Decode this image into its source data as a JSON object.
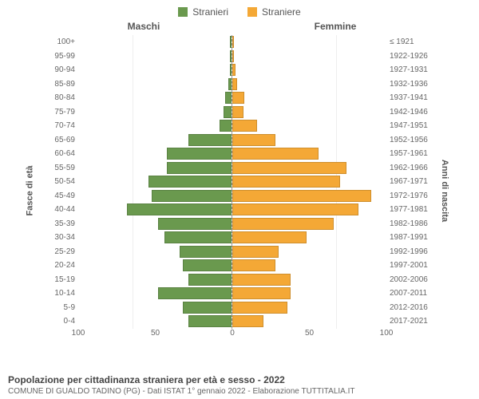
{
  "legend": {
    "male": {
      "label": "Stranieri",
      "color": "#6a994e"
    },
    "female": {
      "label": "Straniere",
      "color": "#f4a836"
    }
  },
  "headers": {
    "male": "Maschi",
    "female": "Femmine"
  },
  "axis_labels": {
    "left": "Fasce di età",
    "right": "Anni di nascita"
  },
  "chart": {
    "type": "population-pyramid",
    "xlim": 100,
    "xticks_left": [
      100,
      50,
      0
    ],
    "xticks_right": [
      0,
      50,
      100
    ],
    "bar_border": "rgba(0,0,0,0.15)",
    "grid_color": "#eeeeee",
    "center_line": "#999999",
    "background": "#ffffff"
  },
  "rows": [
    {
      "age": "100+",
      "birth": "≤ 1921",
      "m": 0,
      "f": 0
    },
    {
      "age": "95-99",
      "birth": "1922-1926",
      "m": 0,
      "f": 0
    },
    {
      "age": "90-94",
      "birth": "1927-1931",
      "m": 0,
      "f": 2
    },
    {
      "age": "85-89",
      "birth": "1932-1936",
      "m": 2,
      "f": 3
    },
    {
      "age": "80-84",
      "birth": "1937-1941",
      "m": 4,
      "f": 8
    },
    {
      "age": "75-79",
      "birth": "1942-1946",
      "m": 5,
      "f": 7
    },
    {
      "age": "70-74",
      "birth": "1947-1951",
      "m": 8,
      "f": 16
    },
    {
      "age": "65-69",
      "birth": "1952-1956",
      "m": 28,
      "f": 28
    },
    {
      "age": "60-64",
      "birth": "1957-1961",
      "m": 42,
      "f": 56
    },
    {
      "age": "55-59",
      "birth": "1962-1966",
      "m": 42,
      "f": 74
    },
    {
      "age": "50-54",
      "birth": "1967-1971",
      "m": 54,
      "f": 70
    },
    {
      "age": "45-49",
      "birth": "1972-1976",
      "m": 52,
      "f": 90
    },
    {
      "age": "40-44",
      "birth": "1977-1981",
      "m": 68,
      "f": 82
    },
    {
      "age": "35-39",
      "birth": "1982-1986",
      "m": 48,
      "f": 66
    },
    {
      "age": "30-34",
      "birth": "1987-1991",
      "m": 44,
      "f": 48
    },
    {
      "age": "25-29",
      "birth": "1992-1996",
      "m": 34,
      "f": 30
    },
    {
      "age": "20-24",
      "birth": "1997-2001",
      "m": 32,
      "f": 28
    },
    {
      "age": "15-19",
      "birth": "2002-2006",
      "m": 28,
      "f": 38
    },
    {
      "age": "10-14",
      "birth": "2007-2011",
      "m": 48,
      "f": 38
    },
    {
      "age": "5-9",
      "birth": "2012-2016",
      "m": 32,
      "f": 36
    },
    {
      "age": "0-4",
      "birth": "2017-2021",
      "m": 28,
      "f": 20
    }
  ],
  "footer": {
    "title": "Popolazione per cittadinanza straniera per età e sesso - 2022",
    "subtitle": "COMUNE DI GUALDO TADINO (PG) - Dati ISTAT 1° gennaio 2022 - Elaborazione TUTTITALIA.IT"
  }
}
